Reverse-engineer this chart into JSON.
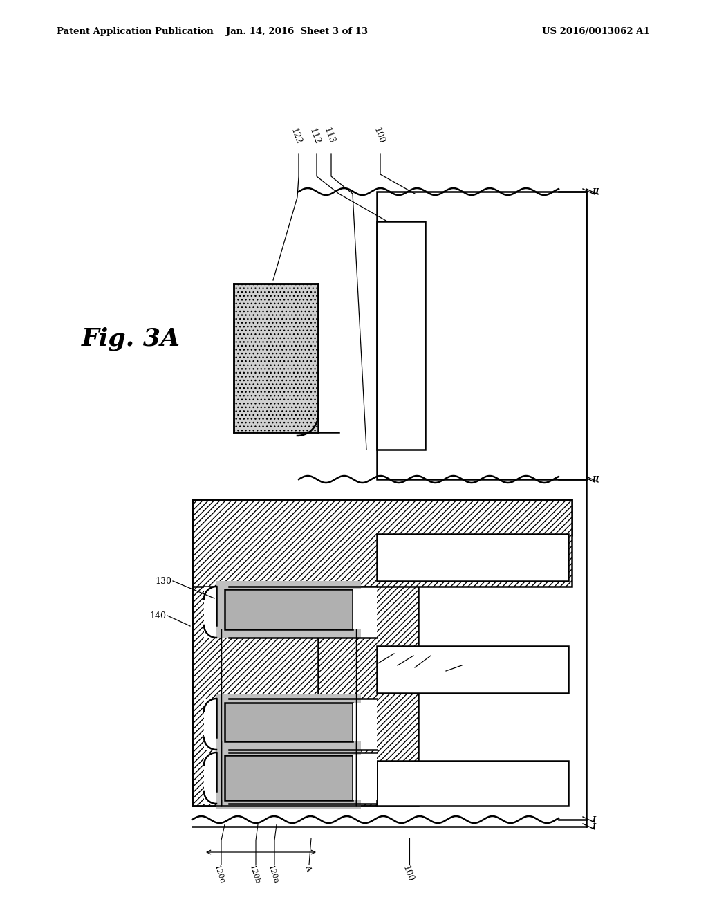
{
  "bg_color": "#ffffff",
  "header_left": "Patent Application Publication",
  "header_mid": "Jan. 14, 2016  Sheet 3 of 13",
  "header_right": "US 2016/0013062 A1",
  "fig_label": "Fig. 3A",
  "hatch_color": "#000000",
  "gray_fg": "#b0b0b0",
  "gray_ono": "#c8c8c8",
  "dot_fill": "#c8c8c8",
  "lw_main": 1.8,
  "lw_thin": 1.0
}
